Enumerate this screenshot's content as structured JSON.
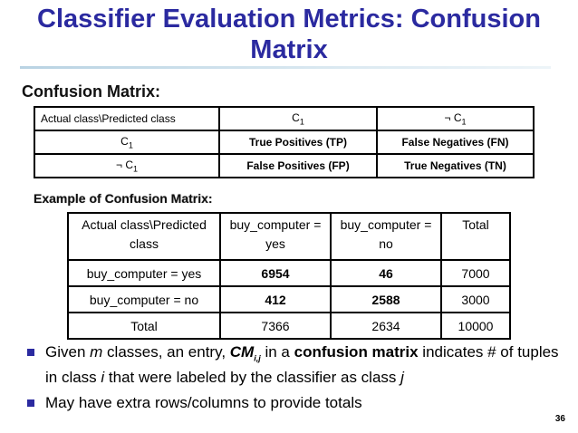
{
  "title": "Classifier Evaluation Metrics: Confusion Matrix",
  "subheading": "Confusion Matrix:",
  "confusion_table": {
    "header": [
      "Actual class\\Predicted class",
      "C",
      "¬ C"
    ],
    "rows": [
      [
        "C",
        "True Positives (TP)",
        "False Negatives (FN)"
      ],
      [
        "¬ C",
        "False Positives (FP)",
        "True Negatives (TN)"
      ]
    ],
    "subscript": "1"
  },
  "example_heading": "Example of Confusion Matrix:",
  "example_table": {
    "header": [
      "Actual class\\Predicted class",
      "buy_computer = yes",
      "buy_computer = no",
      "Total"
    ],
    "rows": [
      [
        "buy_computer = yes",
        "6954",
        "46",
        "7000"
      ],
      [
        "buy_computer = no",
        "412",
        "2588",
        "3000"
      ],
      [
        "Total",
        "7366",
        "2634",
        "10000"
      ]
    ]
  },
  "bullets": {
    "b1": {
      "p1": "Given ",
      "m": "m",
      "p2": " classes, an entry, ",
      "cm": "CM",
      "cm_sub": "i,j",
      "p3": "  in a ",
      "bold": "confusion matrix",
      "p4": " indicates # of tuples in class ",
      "i": "i",
      "p5": "  that were labeled by the classifier as class ",
      "j": "j"
    },
    "b2": "May have extra rows/columns to provide totals"
  },
  "page_number": "36",
  "colors": {
    "title": "#2b2aa0",
    "bullet": "#2b2aa0"
  }
}
